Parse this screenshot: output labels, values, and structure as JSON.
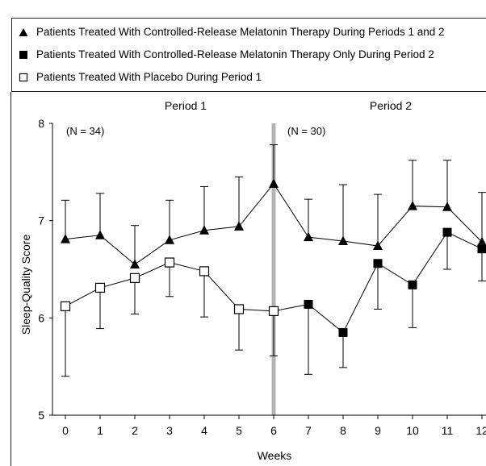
{
  "legend": {
    "items": [
      {
        "label": "Patients Treated With Controlled-Release Melatonin Therapy During Periods 1 and 2",
        "marker": "filled-triangle"
      },
      {
        "label": "Patients Treated With Controlled-Release Melatonin Therapy Only During Period 2",
        "marker": "filled-square"
      },
      {
        "label": "Patients Treated With Placebo During Period 1",
        "marker": "open-square"
      }
    ]
  },
  "period_labels": [
    "Period 1",
    "Period 2"
  ],
  "group_n_labels": [
    "(N = 34)",
    "(N = 30)"
  ],
  "colors": {
    "marker_fill": "#000000",
    "divider": "#b4b4b4",
    "axis": "#000000"
  },
  "chart_data": {
    "type": "line",
    "title": "",
    "xlabel": "Weeks",
    "ylabel": "Sleep-Quality Score",
    "xlim": [
      0,
      12
    ],
    "ylim": [
      5,
      8
    ],
    "xticks": [
      0,
      1,
      2,
      3,
      4,
      5,
      6,
      7,
      8,
      9,
      10,
      11,
      12
    ],
    "yticks": [
      5,
      6,
      7,
      8
    ],
    "period_divider_x": 6,
    "series": [
      {
        "name": "Patients Treated With Controlled-Release Melatonin Therapy During Periods 1 and 2",
        "marker": "filled-triangle",
        "x": [
          0,
          1,
          2,
          3,
          4,
          5,
          6,
          7,
          8,
          9,
          10,
          11,
          12
        ],
        "y": [
          6.81,
          6.85,
          6.55,
          6.8,
          6.9,
          6.94,
          7.38,
          6.83,
          6.79,
          6.74,
          7.15,
          7.14,
          6.78
        ],
        "err": [
          0.4,
          0.43,
          0.4,
          0.41,
          0.45,
          0.51,
          0.4,
          0.39,
          0.58,
          0.53,
          0.47,
          0.48,
          0.51
        ],
        "err_dir": "up"
      },
      {
        "name": "Patients Treated With Placebo During Period 1",
        "marker": "open-square",
        "x": [
          0,
          1,
          2,
          3,
          4,
          5,
          6
        ],
        "y": [
          6.12,
          6.31,
          6.41,
          6.57,
          6.48,
          6.09,
          6.07
        ],
        "err": [
          0.72,
          0.42,
          0.37,
          0.35,
          0.47,
          0.42,
          0.46
        ],
        "err_dir": "down"
      },
      {
        "name": "Patients Treated With Controlled-Release Melatonin Therapy Only During Period 2",
        "marker": "filled-square",
        "x": [
          7,
          8,
          9,
          10,
          11,
          12
        ],
        "y": [
          6.14,
          5.85,
          6.56,
          6.34,
          6.88,
          6.71
        ],
        "err": [
          0.72,
          0.36,
          0.47,
          0.44,
          0.38,
          0.33
        ],
        "err_dir": "down"
      }
    ]
  }
}
